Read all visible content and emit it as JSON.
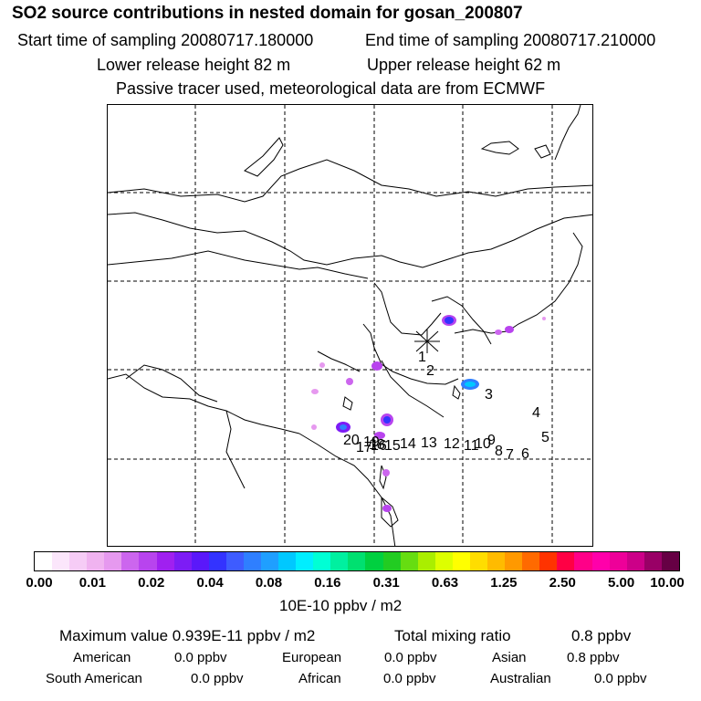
{
  "header": {
    "title": "SO2 source contributions in nested domain for gosan_200807",
    "start": "Start time of sampling 20080717.180000",
    "end": "End time of sampling 20080717.210000",
    "lower": "Lower release height   82 m",
    "upper": "Upper release height   62 m",
    "note": "Passive tracer used, meteorological data are from ECMWF"
  },
  "colorbar": {
    "colors": [
      "#ffffff",
      "#fbe6fb",
      "#f6ccf6",
      "#f0b3f0",
      "#e699ef",
      "#cc66ee",
      "#b844ee",
      "#a020f0",
      "#7d1cf5",
      "#5a18fa",
      "#3333ff",
      "#3e5cff",
      "#2f7fff",
      "#1f9fff",
      "#00c8ff",
      "#00eeff",
      "#00ffd5",
      "#00f0a0",
      "#00e070",
      "#00d040",
      "#22cc22",
      "#66dd11",
      "#aaee00",
      "#ddff00",
      "#ffff00",
      "#ffdd00",
      "#ffbb00",
      "#ff9900",
      "#ff6a00",
      "#ff3300",
      "#ff0044",
      "#ff0088",
      "#ff00aa",
      "#ee0099",
      "#cc0088",
      "#990066",
      "#660044"
    ],
    "ticks": [
      "0.00",
      "0.01",
      "0.02",
      "0.04",
      "0.08",
      "0.16",
      "0.31",
      "0.63",
      "1.25",
      "2.50",
      "5.00",
      "10.00"
    ],
    "unit": "10E-10 ppbv / m2"
  },
  "summary": {
    "max": "Maximum value  0.939E-11 ppbv / m2",
    "total_label": "Total mixing ratio",
    "total_value": "0.8 ppbv",
    "american_label": "American",
    "american_value": "0.0 ppbv",
    "european_label": "European",
    "european_value": "0.0 ppbv",
    "asian_label": "Asian",
    "asian_value": "0.8 ppbv",
    "southamerican_label": "South American",
    "southamerican_value": "0.0 ppbv",
    "african_label": "African",
    "african_value": "0.0 ppbv",
    "australian_label": "Australian",
    "australian_value": "0.0 ppbv"
  },
  "chart_data": {
    "type": "heatmap",
    "title": "SO2 source contributions in nested domain for gosan_200807",
    "units": "10E-10 ppbv / m2",
    "scale_ticks": [
      0.0,
      0.01,
      0.02,
      0.04,
      0.08,
      0.16,
      0.31,
      0.63,
      1.25,
      2.5,
      5.0,
      10.0
    ],
    "max_value": "0.939E-11 ppbv / m2",
    "receptor": "gosan",
    "labels": [
      "1",
      "2",
      "3",
      "4",
      "5",
      "6",
      "7",
      "8",
      "9",
      "10",
      "11",
      "12",
      "13",
      "14",
      "15",
      "16",
      "17",
      "18",
      "19",
      "20"
    ]
  }
}
